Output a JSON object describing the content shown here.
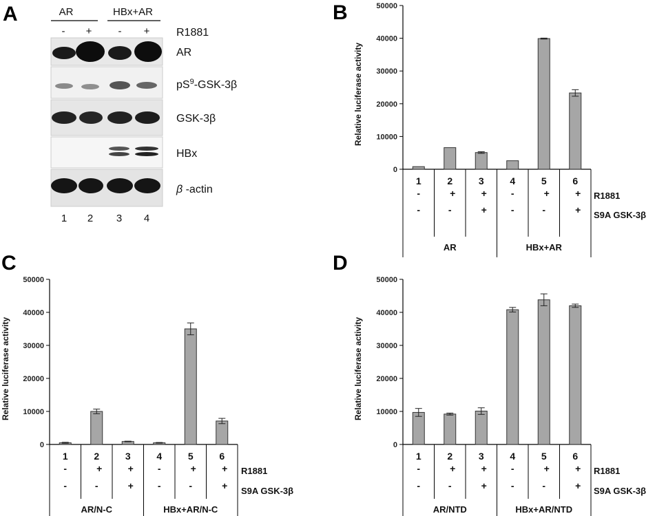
{
  "panel_labels": [
    "A",
    "B",
    "C",
    "D"
  ],
  "blot": {
    "groups": [
      "AR",
      "HBx+AR"
    ],
    "treatment_label": "R1881",
    "treatment": [
      "-",
      "+",
      "-",
      "+"
    ],
    "lanes": [
      "1",
      "2",
      "3",
      "4"
    ],
    "bands": [
      "AR",
      "pS",
      "9",
      "-GSK-3β",
      "GSK-3β",
      "HBx",
      "β",
      " -actin"
    ]
  },
  "chart_data": [
    {
      "type": "bar",
      "panel": "B",
      "ylabel": "Relative luciferase activity",
      "ylim": [
        0,
        50000
      ],
      "yticks": [
        0,
        10000,
        20000,
        30000,
        40000,
        50000
      ],
      "categories": [
        "1",
        "2",
        "3",
        "4",
        "5",
        "6"
      ],
      "values": [
        800,
        6600,
        5100,
        2600,
        39900,
        23300
      ],
      "errors": [
        0,
        0,
        250,
        0,
        150,
        1000
      ],
      "rows": [
        {
          "label": "R1881",
          "values": [
            "-",
            "+",
            "+",
            "-",
            "+",
            "+"
          ]
        },
        {
          "label": "S9A GSK-3β",
          "values": [
            "-",
            "-",
            "+",
            "-",
            "-",
            "+"
          ]
        }
      ],
      "groups": [
        "AR",
        "HBx+AR"
      ],
      "color": "#a6a6a6"
    },
    {
      "type": "bar",
      "panel": "C",
      "ylabel": "Relative luciferase activity",
      "ylim": [
        0,
        50000
      ],
      "yticks": [
        0,
        10000,
        20000,
        30000,
        40000,
        50000
      ],
      "categories": [
        "1",
        "2",
        "3",
        "4",
        "5",
        "6"
      ],
      "values": [
        500,
        10000,
        900,
        500,
        35000,
        7100
      ],
      "errors": [
        150,
        700,
        100,
        100,
        1800,
        800
      ],
      "rows": [
        {
          "label": "R1881",
          "values": [
            "-",
            "+",
            "+",
            "-",
            "+",
            "+"
          ]
        },
        {
          "label": "S9A GSK-3β",
          "values": [
            "-",
            "-",
            "+",
            "-",
            "-",
            "+"
          ]
        }
      ],
      "groups": [
        "AR/N-C",
        "HBx+AR/N-C"
      ],
      "color": "#a6a6a6"
    },
    {
      "type": "bar",
      "panel": "D",
      "ylabel": "Relative luciferase activity",
      "ylim": [
        0,
        50000
      ],
      "yticks": [
        0,
        10000,
        20000,
        30000,
        40000,
        50000
      ],
      "categories": [
        "1",
        "2",
        "3",
        "4",
        "5",
        "6"
      ],
      "values": [
        9700,
        9200,
        10100,
        40800,
        43800,
        42000
      ],
      "errors": [
        1200,
        300,
        1000,
        700,
        1800,
        500
      ],
      "rows": [
        {
          "label": "R1881",
          "values": [
            "-",
            "+",
            "+",
            "-",
            "+",
            "+"
          ]
        },
        {
          "label": "S9A GSK-3β",
          "values": [
            "-",
            "-",
            "+",
            "-",
            "-",
            "+"
          ]
        }
      ],
      "groups": [
        "AR/NTD",
        "HBx+AR/NTD"
      ],
      "color": "#a6a6a6"
    }
  ]
}
